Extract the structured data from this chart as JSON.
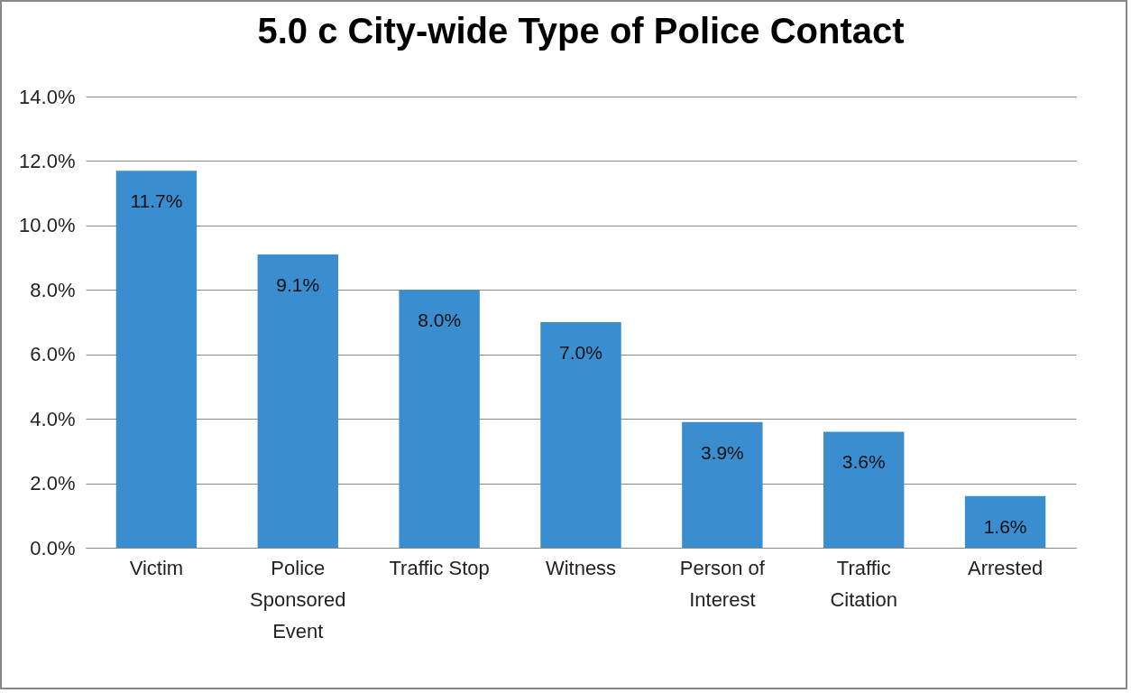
{
  "chart_data": {
    "type": "bar",
    "title": "5.0 c City-wide Type of Police Contact",
    "categories": [
      "Victim",
      "Police Sponsored Event",
      "Traffic Stop",
      "Witness",
      "Person of Interest",
      "Traffic Citation",
      "Arrested"
    ],
    "values": [
      11.7,
      9.1,
      8.0,
      7.0,
      3.9,
      3.6,
      1.6
    ],
    "value_labels": [
      "11.7%",
      "9.1%",
      "8.0%",
      "7.0%",
      "3.9%",
      "3.6%",
      "1.6%"
    ],
    "color": "#3a8dce",
    "ylim": [
      0,
      14
    ],
    "yticks": [
      {
        "value": 0,
        "label": "0.0%"
      },
      {
        "value": 2,
        "label": "2.0%"
      },
      {
        "value": 4,
        "label": "4.0%"
      },
      {
        "value": 6,
        "label": "6.0%"
      },
      {
        "value": 8,
        "label": "8.0%"
      },
      {
        "value": 10,
        "label": "10.0%"
      },
      {
        "value": 12,
        "label": "12.0%"
      },
      {
        "value": 14,
        "label": "14.0%"
      }
    ],
    "grid": true
  }
}
